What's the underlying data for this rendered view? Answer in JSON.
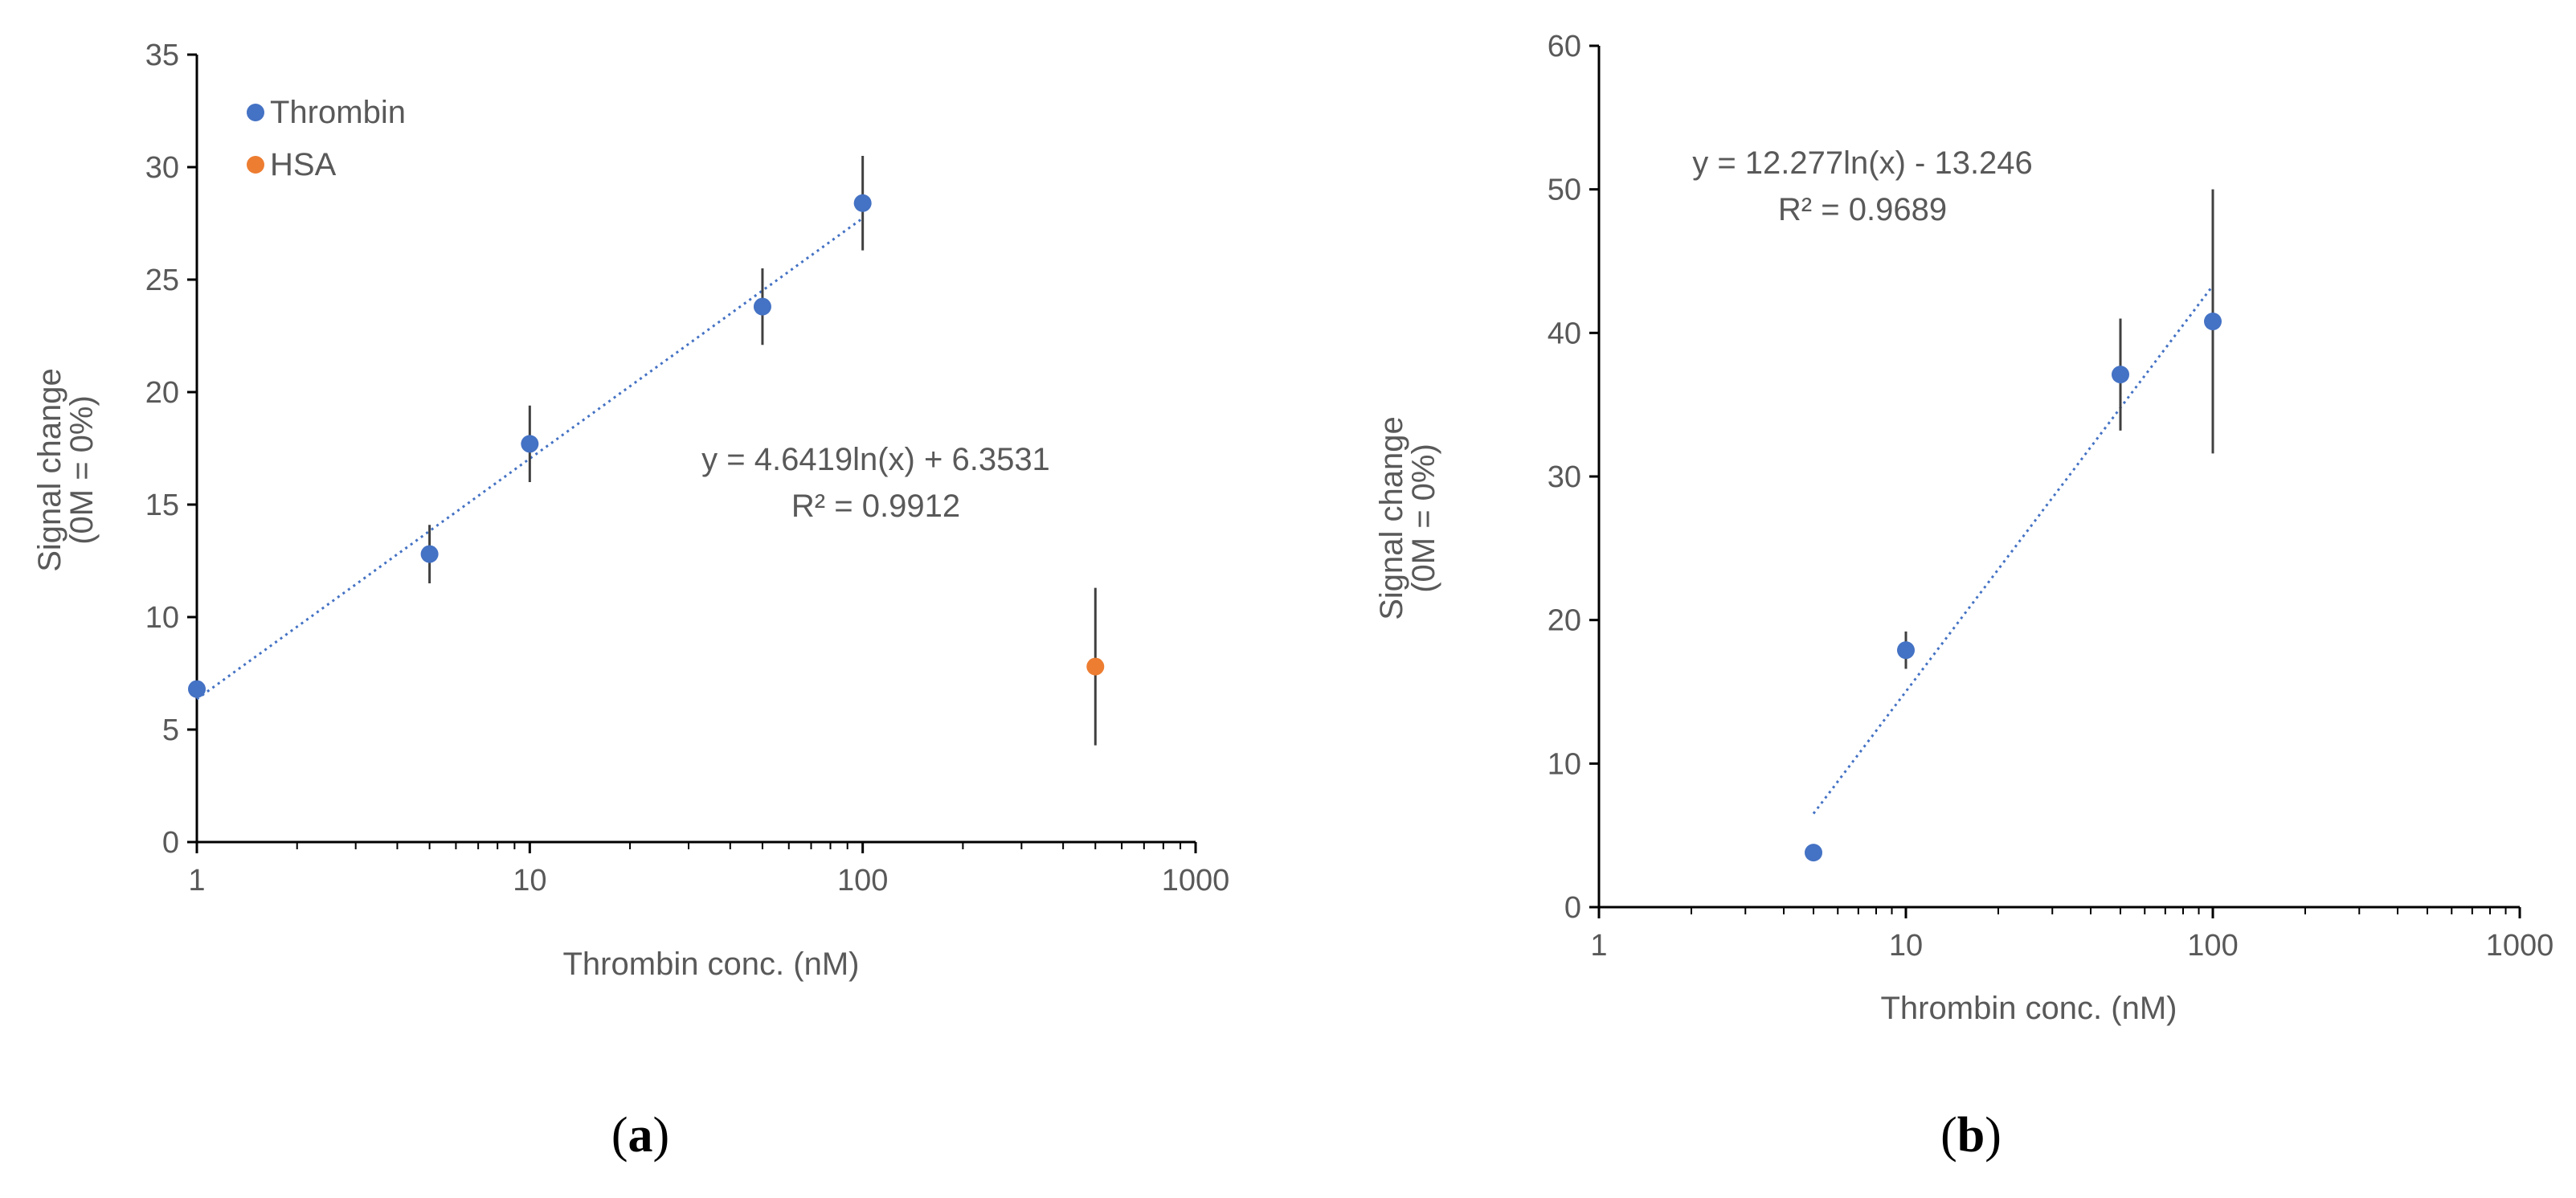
{
  "colors": {
    "thrombin": "#4472C4",
    "hsa": "#ED7D31",
    "axis": "#000000",
    "text": "#595959",
    "error_bar": "#404040"
  },
  "chart_data": [
    {
      "panel": "a",
      "type": "scatter",
      "xscale": "log",
      "xlim": [
        1,
        1000
      ],
      "ylim": [
        0,
        35
      ],
      "xticks": [
        "1",
        "10",
        "100",
        "1000"
      ],
      "yticks": [
        "0",
        "5",
        "10",
        "15",
        "20",
        "25",
        "30",
        "35"
      ],
      "xlabel": "Thrombin conc. (nM)",
      "ylabel_line1": "Signal change",
      "ylabel_line2": "(0M = 0%)",
      "legend": [
        {
          "name": "Thrombin",
          "color_key": "thrombin"
        },
        {
          "name": "HSA",
          "color_key": "hsa"
        }
      ],
      "series": [
        {
          "name": "Thrombin",
          "color_key": "thrombin",
          "points": [
            {
              "x": 1,
              "y": 6.8,
              "err": 0
            },
            {
              "x": 5,
              "y": 12.8,
              "err": 1.3
            },
            {
              "x": 10,
              "y": 17.7,
              "err": 1.7
            },
            {
              "x": 50,
              "y": 23.8,
              "err": 1.7
            },
            {
              "x": 100,
              "y": 28.4,
              "err": 2.1
            }
          ]
        },
        {
          "name": "HSA",
          "color_key": "hsa",
          "points": [
            {
              "x": 500,
              "y": 7.8,
              "err": 3.5
            }
          ]
        }
      ],
      "trendline": {
        "a": 4.6419,
        "b": 6.3531,
        "x_from": 1,
        "x_to": 100
      },
      "equation": "y = 4.6419ln(x) + 6.3531",
      "r2": "R² = 0.9912",
      "caption_letter": "a"
    },
    {
      "panel": "b",
      "type": "scatter",
      "xscale": "log",
      "xlim": [
        1,
        1000
      ],
      "ylim": [
        0,
        60
      ],
      "xticks": [
        "1",
        "10",
        "100",
        "1000"
      ],
      "yticks": [
        "0",
        "10",
        "20",
        "30",
        "40",
        "50",
        "60"
      ],
      "xlabel": "Thrombin  conc. (nM)",
      "ylabel_line1": "Signal change",
      "ylabel_line2": "(0M = 0%)",
      "series": [
        {
          "name": "Thrombin",
          "color_key": "thrombin",
          "points": [
            {
              "x": 5,
              "y": 3.8,
              "err": 0
            },
            {
              "x": 10,
              "y": 17.9,
              "err": 1.3
            },
            {
              "x": 50,
              "y": 37.1,
              "err": 3.9
            },
            {
              "x": 100,
              "y": 40.8,
              "err": 9.2
            }
          ]
        }
      ],
      "trendline": {
        "a": 12.277,
        "b": -13.246,
        "x_from": 5,
        "x_to": 100
      },
      "equation": "y = 12.277ln(x) - 13.246",
      "r2": "R² = 0.9689",
      "caption_letter": "b"
    }
  ]
}
